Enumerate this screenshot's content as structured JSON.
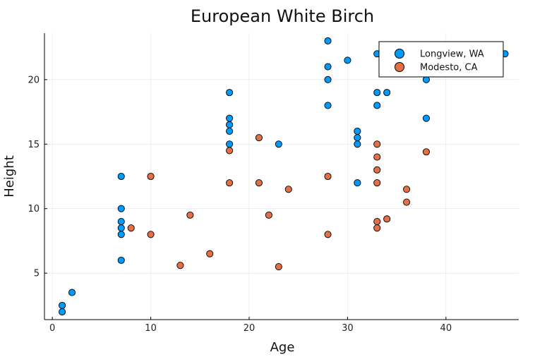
{
  "chart_data": {
    "type": "scatter",
    "title": "European White Birch",
    "xlabel": "Age",
    "ylabel": "Height",
    "xlim": [
      -0.8,
      47.4
    ],
    "ylim": [
      1.4,
      23.6
    ],
    "xticks": [
      0,
      10,
      20,
      30,
      40
    ],
    "yticks": [
      5,
      10,
      15,
      20
    ],
    "grid": true,
    "legend_position": "top-right",
    "series": [
      {
        "name": "Longview, WA",
        "color": "#009AFA",
        "points": [
          [
            1,
            2.5
          ],
          [
            1,
            2.0
          ],
          [
            2,
            3.5
          ],
          [
            7,
            12.5
          ],
          [
            7,
            10.0
          ],
          [
            7,
            9.0
          ],
          [
            7,
            8.5
          ],
          [
            7,
            8.0
          ],
          [
            7,
            6.0
          ],
          [
            18,
            19.0
          ],
          [
            18,
            17.0
          ],
          [
            18,
            16.5
          ],
          [
            18,
            16.0
          ],
          [
            18,
            15.0
          ],
          [
            23,
            15.0
          ],
          [
            28,
            23.0
          ],
          [
            28,
            21.0
          ],
          [
            28,
            20.0
          ],
          [
            28,
            18.0
          ],
          [
            30,
            21.5
          ],
          [
            31,
            16.0
          ],
          [
            31,
            15.5
          ],
          [
            31,
            15.0
          ],
          [
            31,
            12.0
          ],
          [
            33,
            22.0
          ],
          [
            33,
            19.0
          ],
          [
            33,
            18.0
          ],
          [
            34,
            19.0
          ],
          [
            38,
            20.0
          ],
          [
            38,
            17.0
          ],
          [
            46,
            22.0
          ]
        ]
      },
      {
        "name": "Modesto, CA",
        "color": "#E26F46",
        "points": [
          [
            8,
            8.5
          ],
          [
            10,
            12.5
          ],
          [
            10,
            8.0
          ],
          [
            13,
            5.6
          ],
          [
            14,
            9.5
          ],
          [
            16,
            6.5
          ],
          [
            18,
            14.5
          ],
          [
            18,
            12.0
          ],
          [
            21,
            15.5
          ],
          [
            21,
            12.0
          ],
          [
            22,
            9.5
          ],
          [
            23,
            5.5
          ],
          [
            24,
            11.5
          ],
          [
            28,
            12.5
          ],
          [
            28,
            8.0
          ],
          [
            33,
            15.0
          ],
          [
            33,
            14.0
          ],
          [
            33,
            13.0
          ],
          [
            33,
            12.0
          ],
          [
            33,
            9.0
          ],
          [
            33,
            8.5
          ],
          [
            34,
            9.2
          ],
          [
            36,
            11.5
          ],
          [
            36,
            10.5
          ],
          [
            38,
            14.4
          ]
        ]
      }
    ]
  }
}
